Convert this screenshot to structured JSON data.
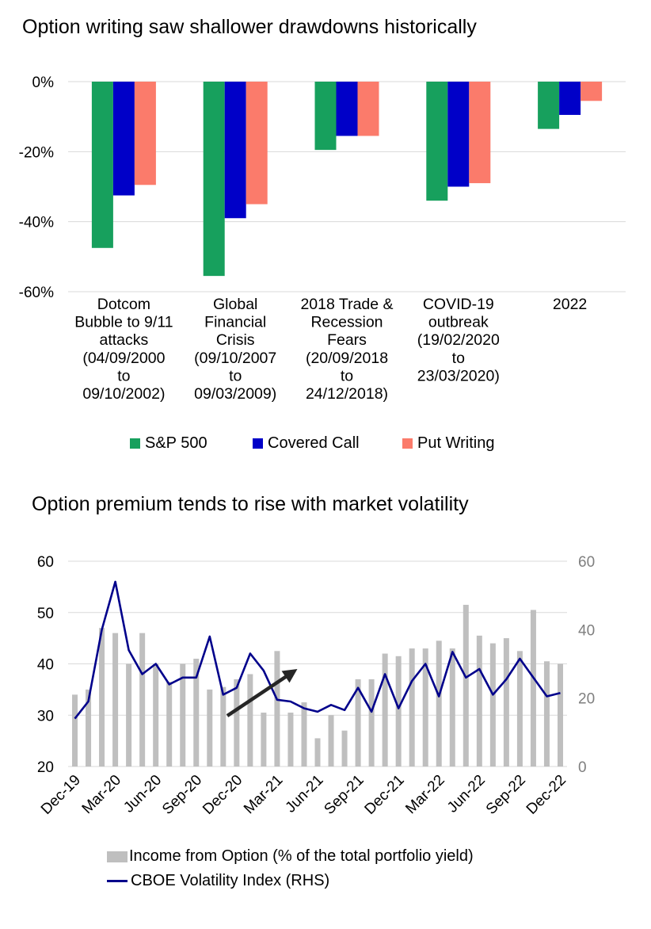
{
  "chart_data": [
    {
      "type": "bar",
      "title": "Option writing saw shallower drawdowns historically",
      "categories": [
        [
          "Dotcom",
          "Bubble to 9/11",
          "attacks",
          "(04/09/2000",
          "to",
          "09/10/2002)"
        ],
        [
          "Global",
          "Financial",
          "Crisis",
          "(09/10/2007",
          "to",
          "09/03/2009)"
        ],
        [
          "2018 Trade &",
          "Recession",
          "Fears",
          "(20/09/2018",
          "to",
          "24/12/2018)"
        ],
        [
          "COVID-19",
          "outbreak",
          "(19/02/2020",
          "to",
          "23/03/2020)"
        ],
        [
          "2022"
        ]
      ],
      "series": [
        {
          "name": "S&P 500",
          "color": "#17a05d",
          "values": [
            -47.5,
            -55.5,
            -19.5,
            -34,
            -13.5
          ]
        },
        {
          "name": "Covered Call",
          "color": "#0000c8",
          "values": [
            -32.5,
            -39,
            -15.5,
            -30,
            -9.5
          ]
        },
        {
          "name": "Put Writing",
          "color": "#fb7b6b",
          "values": [
            -29.5,
            -35,
            -15.5,
            -29,
            -5.5
          ]
        }
      ],
      "ylim": [
        -60,
        0
      ],
      "yticks": [
        "0%",
        "-20%",
        "-40%",
        "-60%"
      ],
      "ytick_values": [
        0,
        -20,
        -40,
        -60
      ],
      "grid": true,
      "legend": "bottom"
    },
    {
      "type": "bar+line",
      "title": "Option premium tends to rise with market volatility",
      "x_labels": [
        "Dec-19",
        "Mar-20",
        "Jun-20",
        "Sep-20",
        "Dec-20",
        "Mar-21",
        "Jun-21",
        "Sep-21",
        "Dec-21",
        "Mar-22",
        "Jun-22",
        "Sep-22",
        "Dec-22"
      ],
      "x": [
        "Dec-19",
        "Jan-20",
        "Feb-20",
        "Mar-20",
        "Apr-20",
        "May-20",
        "Jun-20",
        "Jul-20",
        "Aug-20",
        "Sep-20",
        "Oct-20",
        "Nov-20",
        "Dec-20",
        "Jan-21",
        "Feb-21",
        "Mar-21",
        "Apr-21",
        "May-21",
        "Jun-21",
        "Jul-21",
        "Aug-21",
        "Sep-21",
        "Oct-21",
        "Nov-21",
        "Dec-21",
        "Jan-22",
        "Feb-22",
        "Mar-22",
        "Apr-22",
        "May-22",
        "Jun-22",
        "Jul-22",
        "Aug-22",
        "Sep-22",
        "Oct-22",
        "Nov-22",
        "Dec-22"
      ],
      "series": [
        {
          "name": "Income from Option (% of the total portfolio yield)",
          "type": "bar",
          "axis": "left",
          "color": "#bfbfbf",
          "values": [
            34,
            35,
            47,
            46,
            40,
            46,
            40,
            36.5,
            40,
            41,
            35,
            35.5,
            37,
            38,
            30.5,
            42.5,
            30.5,
            32.5,
            25.5,
            30,
            27,
            37,
            37,
            42,
            41.5,
            43,
            43,
            44.5,
            43,
            51.5,
            45.5,
            44,
            45,
            42.5,
            50.5,
            40.5,
            40
          ]
        },
        {
          "name": "CBOE Volatility Index (RHS)",
          "type": "line",
          "axis": "right",
          "color": "#00008b",
          "values": [
            14,
            19,
            40,
            54,
            34,
            27,
            30,
            24,
            26,
            26,
            38,
            21,
            23,
            33,
            28,
            19.5,
            19,
            17,
            16,
            18,
            16.5,
            23,
            16,
            27,
            17,
            25,
            30,
            20.5,
            33.5,
            26,
            28.5,
            21,
            25.5,
            31.5,
            26,
            20.5,
            21.5
          ]
        }
      ],
      "ylim_left": [
        20,
        60
      ],
      "yticks_left": [
        20,
        30,
        40,
        50,
        60
      ],
      "ylim_right": [
        0,
        60
      ],
      "yticks_right": [
        0,
        20,
        40,
        60
      ],
      "annotation": "upward arrow",
      "grid": true,
      "legend": "bottom"
    }
  ],
  "colors": {
    "axis": "#d9d9d9",
    "text": "#000000",
    "right_tick": "#7f7f7f",
    "arrow": "#262626"
  }
}
